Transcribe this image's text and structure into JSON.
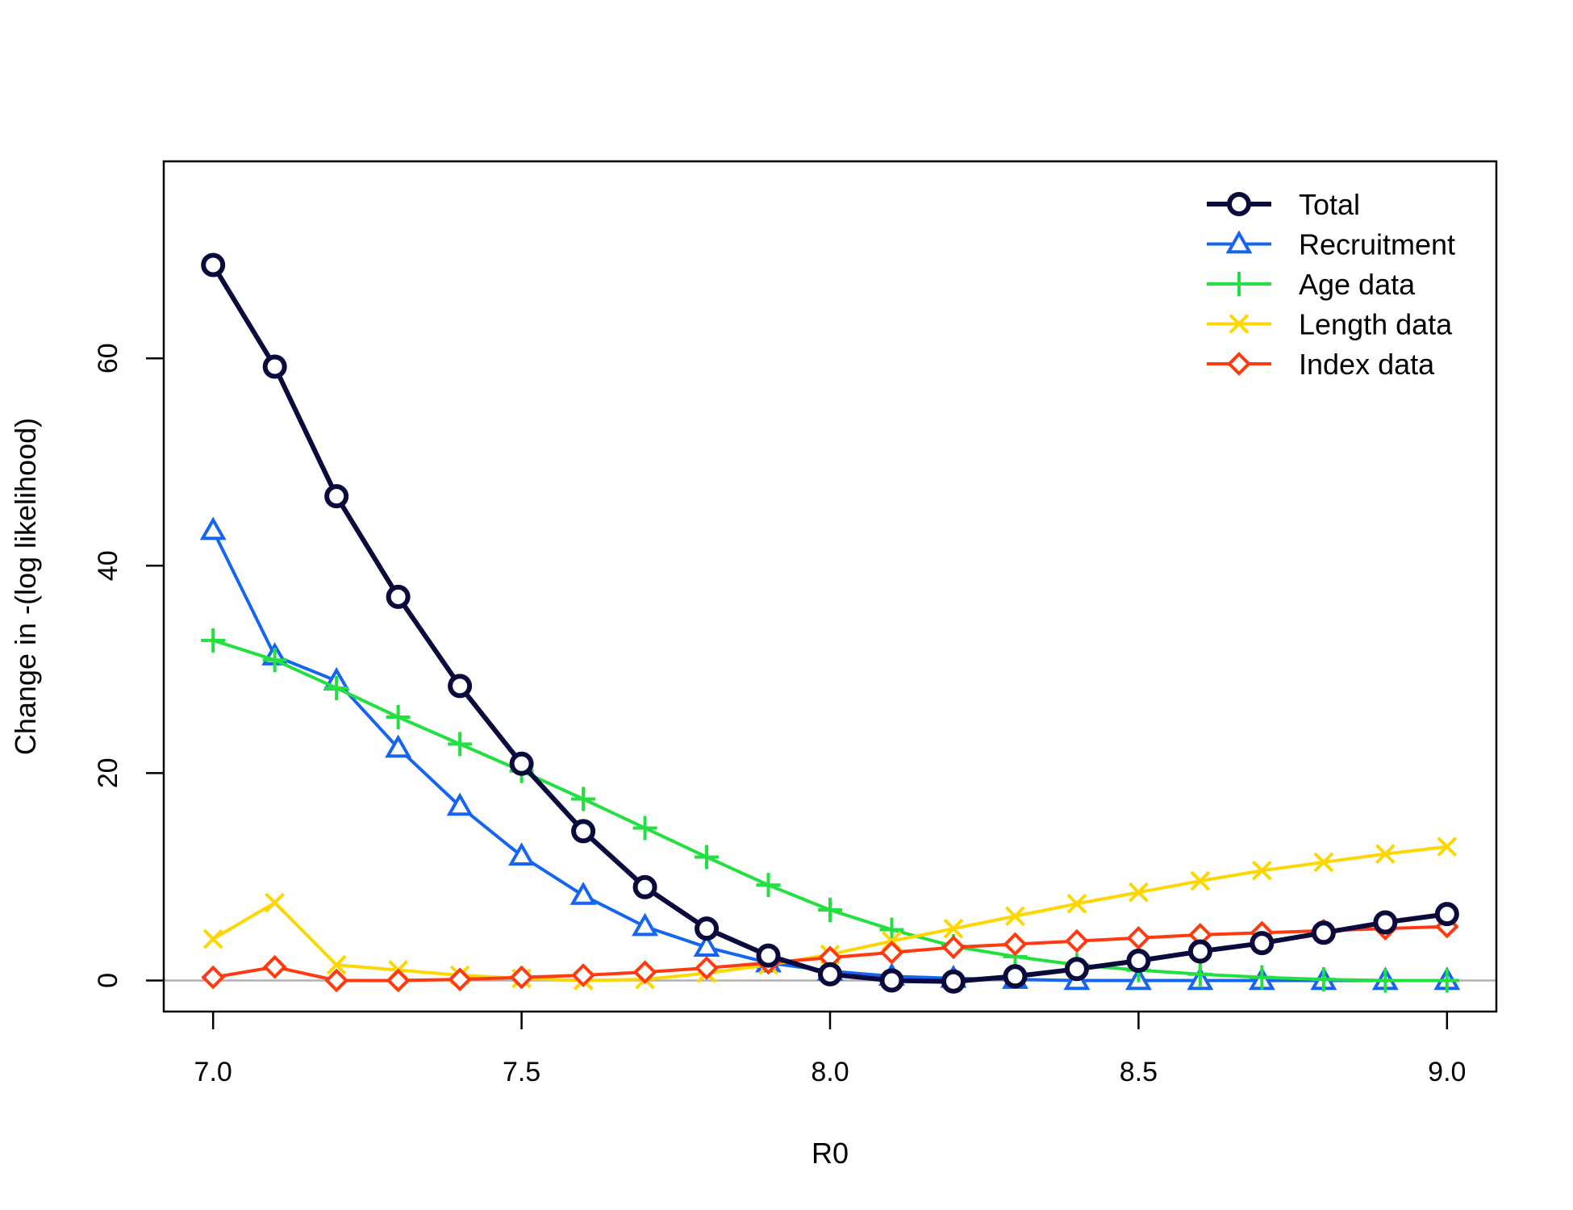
{
  "chart_data": {
    "type": "line",
    "title": "",
    "xlabel": "R0",
    "ylabel": "Change in -(log likelihood)",
    "xlim": [
      6.92,
      9.08
    ],
    "ylim": [
      -3,
      79
    ],
    "x_ticks": [
      7.0,
      7.5,
      8.0,
      8.5,
      9.0
    ],
    "x_tick_labels": [
      "7.0",
      "7.5",
      "8.0",
      "8.5",
      "9.0"
    ],
    "y_ticks": [
      0,
      20,
      40,
      60
    ],
    "y_tick_labels": [
      "0",
      "20",
      "40",
      "60"
    ],
    "zero_line": true,
    "grid": false,
    "legend_position": "top-right",
    "x": [
      7.0,
      7.1,
      7.2,
      7.3,
      7.4,
      7.5,
      7.6,
      7.7,
      7.8,
      7.9,
      8.0,
      8.1,
      8.2,
      8.3,
      8.4,
      8.5,
      8.6,
      8.7,
      8.8,
      8.9,
      9.0
    ],
    "series": [
      {
        "name": "Total",
        "color": "#0a0a3c",
        "marker": "circle",
        "values": [
          69.0,
          59.2,
          46.7,
          37.0,
          28.4,
          20.9,
          14.4,
          9.0,
          5.0,
          2.4,
          0.6,
          0.0,
          -0.1,
          0.4,
          1.1,
          1.9,
          2.8,
          3.6,
          4.6,
          5.6,
          6.4
        ]
      },
      {
        "name": "Recruitment",
        "color": "#1565f0",
        "marker": "triangle",
        "values": [
          43.4,
          31.3,
          28.9,
          22.4,
          16.8,
          12.0,
          8.2,
          5.2,
          3.2,
          1.7,
          0.9,
          0.4,
          0.2,
          0.1,
          0.0,
          0.0,
          0.0,
          0.0,
          0.0,
          0.0,
          0.0
        ]
      },
      {
        "name": "Age data",
        "color": "#22e040",
        "marker": "plus",
        "values": [
          32.8,
          30.9,
          28.2,
          25.4,
          22.8,
          20.2,
          17.5,
          14.7,
          11.9,
          9.2,
          6.8,
          4.9,
          3.3,
          2.3,
          1.5,
          1.0,
          0.6,
          0.3,
          0.1,
          0.0,
          0.0
        ]
      },
      {
        "name": "Length data",
        "color": "#ffd700",
        "marker": "x",
        "values": [
          4.0,
          7.5,
          1.5,
          1.0,
          0.5,
          0.2,
          0.0,
          0.1,
          0.7,
          1.5,
          2.5,
          3.8,
          5.0,
          6.2,
          7.4,
          8.5,
          9.6,
          10.6,
          11.4,
          12.2,
          12.9
        ]
      },
      {
        "name": "Index data",
        "color": "#ff3a10",
        "marker": "diamond",
        "values": [
          0.3,
          1.3,
          0.0,
          0.0,
          0.1,
          0.3,
          0.5,
          0.8,
          1.2,
          1.7,
          2.2,
          2.7,
          3.2,
          3.5,
          3.8,
          4.1,
          4.4,
          4.6,
          4.8,
          5.0,
          5.2
        ]
      }
    ]
  }
}
